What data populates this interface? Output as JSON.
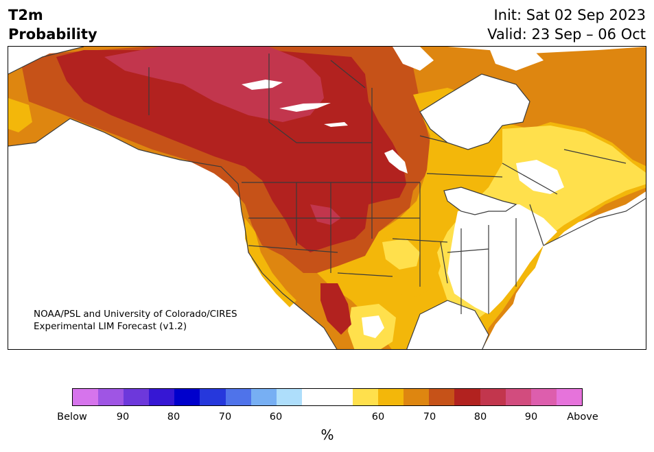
{
  "title": {
    "line1": "T2m",
    "line2": "Probability"
  },
  "dates": {
    "init": "Init: Sat 02 Sep 2023",
    "valid": "Valid: 23 Sep – 06 Oct"
  },
  "credit": {
    "line1": "NOAA/PSL and University of Colorado/CIRES",
    "line2": "Experimental LIM Forecast (v1.2)"
  },
  "colorbar": {
    "colors": [
      "#d674ec",
      "#9f55e4",
      "#6d38db",
      "#3617d4",
      "#0000cc",
      "#2638dc",
      "#4f73ea",
      "#77aff3",
      "#aedefb",
      "#ffffff",
      "#ffffff",
      "#ffe04c",
      "#f3b70a",
      "#de8610",
      "#c65218",
      "#b2221f",
      "#c2364d",
      "#d24c7e",
      "#dd5ead",
      "#e673db"
    ],
    "ticks": {
      "below": "Below",
      "b90": "90",
      "b80": "80",
      "b70": "70",
      "b60": "60",
      "a60": "60",
      "a70": "70",
      "a80": "80",
      "a90": "90",
      "above": "Above"
    },
    "unit": "%"
  },
  "map_colors": {
    "p80plus": "#c2364d",
    "p70_80": "#b2221f",
    "p65_70": "#c65218",
    "p60_65": "#de8610",
    "p55_60": "#f3b70a",
    "p50_55": "#ffe04c",
    "neutral": "#ffffff",
    "borders": "#3a3a3a"
  }
}
